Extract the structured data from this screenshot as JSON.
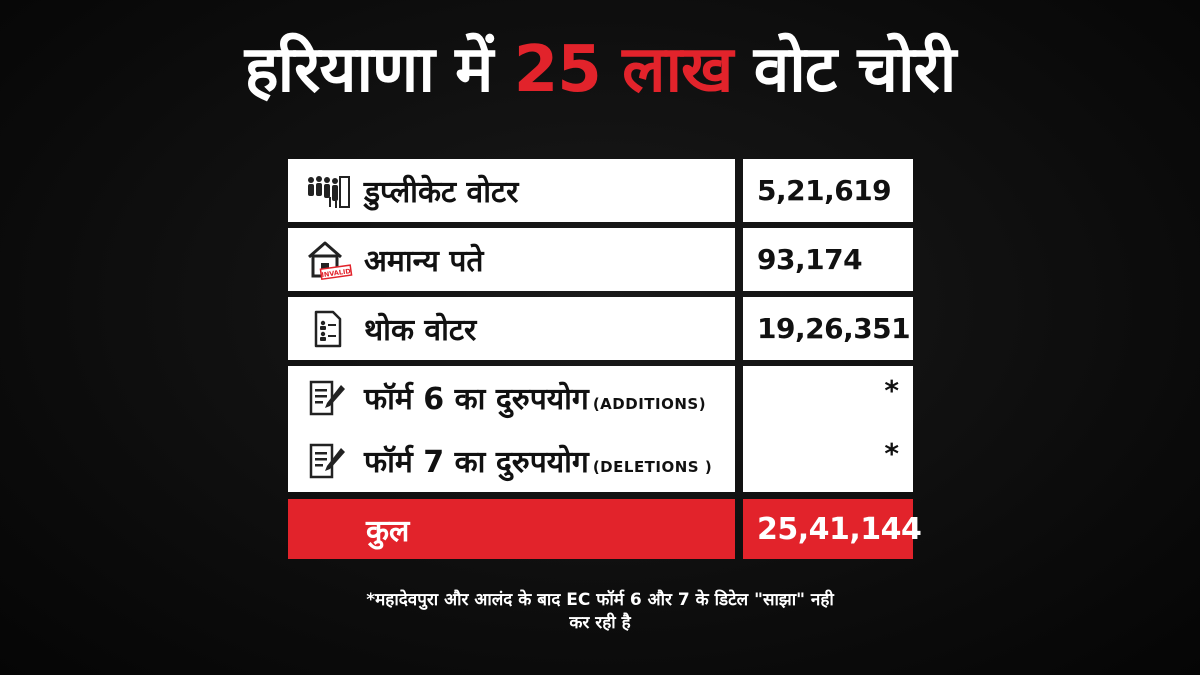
{
  "headline": {
    "part1": "हरियाणा में ",
    "highlight": "25 लाख",
    "part2": " वोट चोरी"
  },
  "rows": [
    {
      "icon": "people-queue-icon",
      "label": "डुप्लीकेट वोटर",
      "sub": "",
      "value": "5,21,619"
    },
    {
      "icon": "house-invalid-icon",
      "label": "अमान्य पते",
      "sub": "",
      "value": "93,174"
    },
    {
      "icon": "voter-list-document-icon",
      "label": "थोक वोटर",
      "sub": "",
      "value": "19,26,351"
    },
    {
      "icon": "form-pencil-icon",
      "label": "फॉर्म 6 का दुरुपयोग",
      "sub": "(ADDITIONS)",
      "value": "*"
    },
    {
      "icon": "form-pencil-icon",
      "label": "फॉर्म 7 का दुरुपयोग",
      "sub": "(DELETIONS )",
      "value": "*"
    }
  ],
  "total": {
    "label": "कुल",
    "value": "25,41,144"
  },
  "stamp": "INVALID",
  "footnote": {
    "line1": "*महादेवपुरा और आलंद के बाद EC फॉर्म 6 और 7 के डिटेल \"साझा\" नही",
    "line2": "कर रही है"
  },
  "colors": {
    "accent": "#e2232b",
    "background": "#0d0d0d"
  }
}
